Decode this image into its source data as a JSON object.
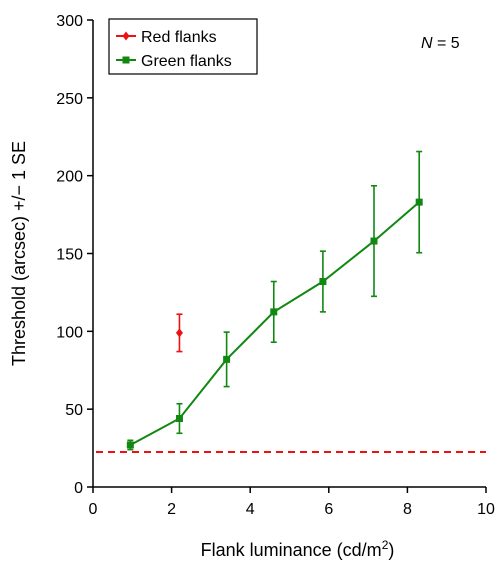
{
  "chart_data": {
    "type": "line",
    "xlabel": "Flank luminance (cd/m",
    "xlabel_sup": "2",
    "xlabel_close": ")",
    "ylabel": "Threshold (arcsec) +/− 1 SE",
    "xlim": [
      0,
      10
    ],
    "ylim": [
      0,
      300
    ],
    "x_ticks": [
      0,
      2,
      4,
      6,
      8,
      10
    ],
    "x_tick_labels": [
      "0",
      "2",
      "4",
      "6",
      "8",
      "10"
    ],
    "y_ticks": [
      0,
      50,
      100,
      150,
      200,
      250,
      300
    ],
    "y_tick_labels": [
      "0",
      "50",
      "100",
      "150",
      "200",
      "250",
      "300"
    ],
    "grid": false,
    "legend_position": "top-left",
    "annotation": {
      "italic": "N",
      "rest": " = 5"
    },
    "reference_line": {
      "y": 22.5,
      "color": "#ee1111",
      "style": "dashed"
    },
    "series": [
      {
        "name": "Red flanks",
        "color": "#ee1111",
        "marker": "diamond",
        "points": [
          {
            "x": 2.2,
            "y": 99,
            "err": 12
          }
        ]
      },
      {
        "name": "Green flanks",
        "color": "#118811",
        "marker": "square",
        "points": [
          {
            "x": 0.95,
            "y": 27,
            "err": 3
          },
          {
            "x": 2.2,
            "y": 44,
            "err": 9.5
          },
          {
            "x": 3.4,
            "y": 82,
            "err": 17.5
          },
          {
            "x": 4.6,
            "y": 112.5,
            "err": 19.5
          },
          {
            "x": 5.85,
            "y": 132,
            "err": 19.5
          },
          {
            "x": 7.15,
            "y": 158,
            "err": 35.5
          },
          {
            "x": 8.3,
            "y": 183,
            "err": 32.5
          }
        ]
      }
    ]
  }
}
